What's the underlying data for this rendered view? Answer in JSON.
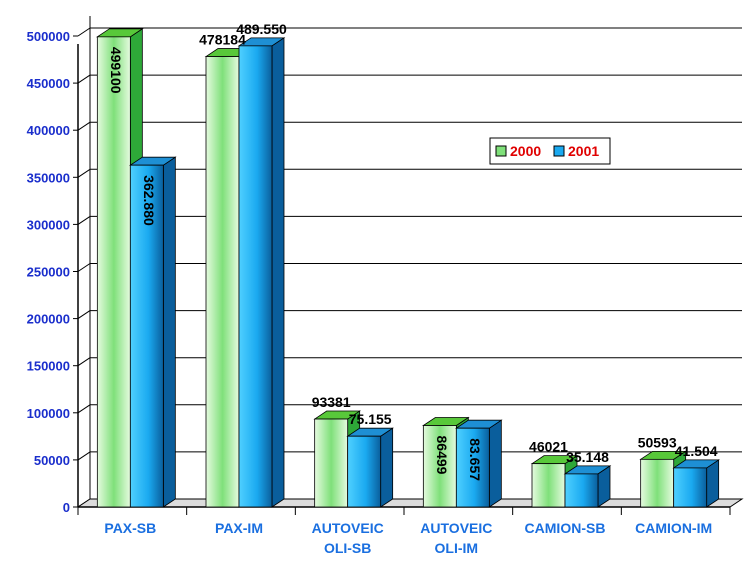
{
  "chart_data": {
    "type": "bar",
    "categories": [
      [
        "PAX-SB"
      ],
      [
        "PAX-IM"
      ],
      [
        "AUTOVEIC",
        "OLI-SB"
      ],
      [
        "AUTOVEIC",
        "OLI-IM"
      ],
      [
        "CAMION-SB"
      ],
      [
        "CAMION-IM"
      ]
    ],
    "series": [
      {
        "name": "2000",
        "values": [
          499100,
          478184,
          93381,
          86499,
          46021,
          50593
        ],
        "labels": [
          "499100",
          "478184",
          "93381",
          "86499",
          "46021",
          "50593"
        ],
        "label_vertical": [
          true,
          false,
          false,
          true,
          false,
          false
        ]
      },
      {
        "name": "2001",
        "values": [
          362880,
          489550,
          75155,
          83657,
          35148,
          41504
        ],
        "labels": [
          "362.880",
          "489.550",
          "75.155",
          "83.657",
          "35.148",
          "41.504"
        ],
        "label_vertical": [
          true,
          false,
          false,
          true,
          false,
          false
        ]
      }
    ],
    "yticks": [
      0,
      50000,
      100000,
      150000,
      200000,
      250000,
      300000,
      350000,
      400000,
      450000,
      500000
    ],
    "ylim": [
      0,
      500000
    ],
    "grid": true,
    "legend": "upper-right-inside",
    "colors": {
      "series_2000_light": "#e6fbe0",
      "series_2000_mid": "#7fe07a",
      "series_2000_dark": "#2ea838",
      "series_2000_top": "#58c83a",
      "series_2001_light": "#4fd0ff",
      "series_2001_mid": "#1aa9f0",
      "series_2001_dark": "#0a5e9c",
      "series_2001_top": "#1e8fd4",
      "ytick_text": "#1a2ecc",
      "xtick_text": "#1a6fe0",
      "legend_text": "#e00000",
      "grid": "#000000"
    }
  }
}
